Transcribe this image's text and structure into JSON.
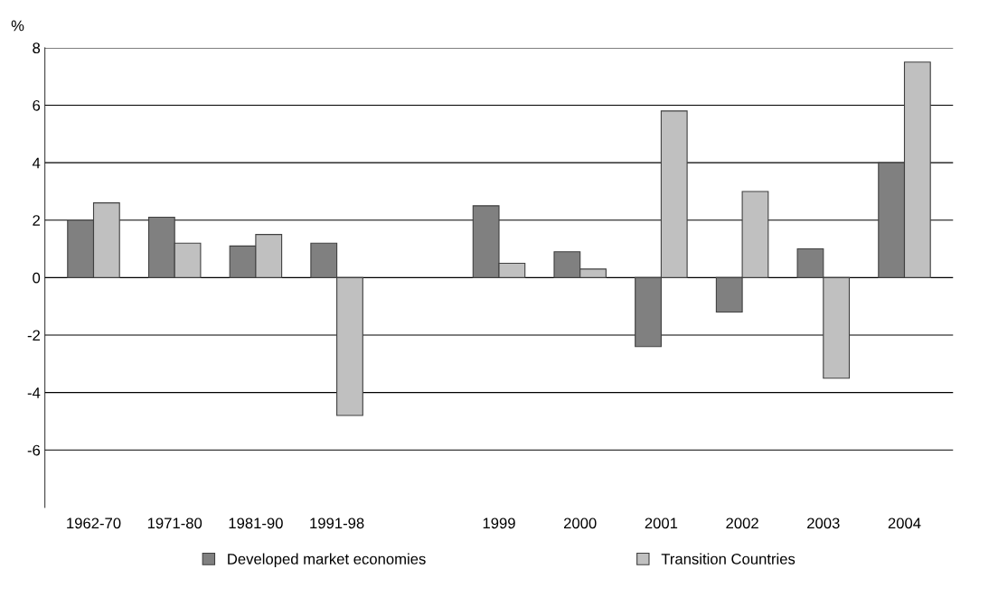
{
  "chart_data": {
    "type": "bar",
    "ylabel": "%",
    "categories": [
      "1962-70",
      "1971-80",
      "1981-90",
      "1991-98",
      null,
      "1999",
      "2000",
      "2001",
      "2002",
      "2003",
      "2004"
    ],
    "series": [
      {
        "name": "Developed market economies",
        "color": "#808080",
        "values": [
          2.0,
          2.1,
          1.1,
          1.2,
          null,
          2.5,
          0.9,
          -2.4,
          -1.2,
          1.0,
          4.0
        ]
      },
      {
        "name": "Transition Countries",
        "color": "#c0c0c0",
        "values": [
          2.6,
          1.2,
          1.5,
          -4.8,
          null,
          0.5,
          0.3,
          5.8,
          3.0,
          -3.5,
          7.5
        ]
      }
    ],
    "ylim": [
      -8,
      8
    ],
    "yticks": [
      -6,
      -4,
      -2,
      0,
      2,
      4,
      6,
      8
    ],
    "grid": "y",
    "legend": "bottom"
  }
}
